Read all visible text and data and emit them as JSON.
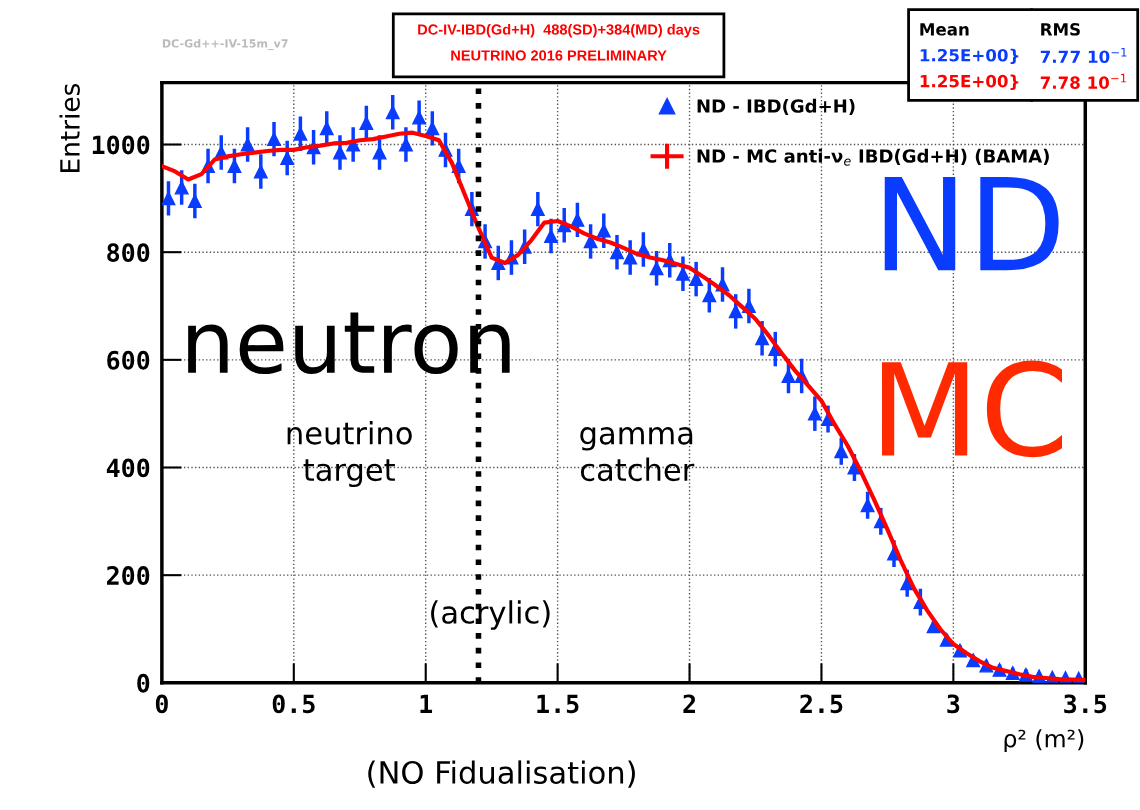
{
  "chart_data": {
    "type": "scatter",
    "title": "DC-IV-IBD(Gd+H)  488(SD)+384(MD) days",
    "subtitle": "NEUTRINO 2016 PRELIMINARY",
    "xlabel": "ρ² (m²)",
    "ylabel": "Entries",
    "xlim": [
      0,
      3.5
    ],
    "ylim": [
      0,
      1115
    ],
    "xticks": [
      0,
      0.5,
      1,
      1.5,
      2,
      2.5,
      3,
      3.5
    ],
    "yticks": [
      0,
      200,
      400,
      600,
      800,
      1000
    ],
    "grid": true,
    "legend": "top right",
    "ref_lines": [
      {
        "axis": "x",
        "value": 1.2,
        "color": "#000000",
        "line_style": "dotted"
      }
    ],
    "annotations": [
      "DC-Gd++-IV-15m_v7",
      "neutron",
      "neutrino\ntarget",
      "gamma\ncatcher",
      "(acrylic)",
      "(NO Fidualisation)",
      "ND",
      "MC",
      "Mean",
      "1.25E+00}",
      "1.25E+00}",
      "RMS",
      "7.77 10$^{−1}$",
      "7.78 10$^{−1}$"
    ],
    "series": [
      {
        "name": "ND - IBD(Gd+H)",
        "color": "#0a3cff",
        "marker": "triangle",
        "x": [
          0.025,
          0.075,
          0.125,
          0.175,
          0.225,
          0.275,
          0.325,
          0.375,
          0.425,
          0.475,
          0.525,
          0.575,
          0.625,
          0.675,
          0.725,
          0.775,
          0.825,
          0.875,
          0.925,
          0.975,
          1.025,
          1.075,
          1.125,
          1.175,
          1.225,
          1.275,
          1.325,
          1.375,
          1.425,
          1.475,
          1.525,
          1.575,
          1.625,
          1.675,
          1.725,
          1.775,
          1.825,
          1.875,
          1.925,
          1.975,
          2.025,
          2.075,
          2.125,
          2.175,
          2.225,
          2.275,
          2.325,
          2.375,
          2.425,
          2.475,
          2.525,
          2.575,
          2.625,
          2.675,
          2.725,
          2.775,
          2.825,
          2.875,
          2.925,
          2.975,
          3.025,
          3.075,
          3.125,
          3.175,
          3.225,
          3.275,
          3.325,
          3.375,
          3.425,
          3.475
        ],
        "values": [
          900,
          920,
          895,
          960,
          985,
          960,
          1000,
          950,
          1010,
          975,
          1020,
          995,
          1030,
          985,
          1000,
          1040,
          985,
          1060,
          1000,
          1050,
          1030,
          990,
          960,
          880,
          820,
          780,
          790,
          810,
          880,
          830,
          850,
          860,
          820,
          840,
          800,
          790,
          805,
          770,
          785,
          760,
          750,
          720,
          740,
          690,
          700,
          640,
          620,
          570,
          570,
          500,
          490,
          430,
          400,
          330,
          300,
          240,
          185,
          150,
          105,
          80,
          60,
          42,
          32,
          24,
          18,
          15,
          12,
          10,
          9,
          8
        ],
        "errors": [
          32,
          32,
          32,
          32,
          32,
          32,
          32,
          32,
          32,
          32,
          32,
          32,
          32,
          32,
          32,
          32,
          32,
          32,
          32,
          32,
          32,
          32,
          32,
          32,
          32,
          32,
          32,
          32,
          32,
          32,
          32,
          32,
          32,
          32,
          32,
          32,
          32,
          32,
          32,
          32,
          32,
          32,
          32,
          32,
          32,
          32,
          32,
          32,
          32,
          32,
          25,
          25,
          25,
          25,
          25,
          25,
          25,
          25,
          10,
          10,
          10,
          10,
          10,
          10,
          10,
          10,
          null,
          null,
          null,
          null
        ]
      },
      {
        "name": "ND - MC anti-ν$_{e}$ IBD(Gd+H) (BAMA)",
        "type": "line",
        "color": "#ff0000",
        "line_style": "solid",
        "x": [
          0,
          0.05,
          0.1,
          0.15,
          0.2,
          0.25,
          0.3,
          0.35,
          0.4,
          0.45,
          0.5,
          0.55,
          0.6,
          0.65,
          0.7,
          0.75,
          0.8,
          0.85,
          0.9,
          0.95,
          1.0,
          1.05,
          1.1,
          1.15,
          1.2,
          1.25,
          1.3,
          1.35,
          1.4,
          1.45,
          1.5,
          1.55,
          1.6,
          1.65,
          1.7,
          1.75,
          1.8,
          1.85,
          1.9,
          1.95,
          2.0,
          2.05,
          2.1,
          2.15,
          2.2,
          2.25,
          2.3,
          2.35,
          2.4,
          2.45,
          2.5,
          2.55,
          2.6,
          2.65,
          2.7,
          2.75,
          2.8,
          2.85,
          2.9,
          2.95,
          3.0,
          3.05,
          3.1,
          3.15,
          3.2,
          3.25,
          3.3,
          3.35,
          3.4,
          3.45,
          3.5
        ],
        "values": [
          960,
          950,
          935,
          945,
          972,
          978,
          982,
          985,
          988,
          990,
          990,
          995,
          998,
          1002,
          1003,
          1008,
          1010,
          1015,
          1020,
          1022,
          1016,
          1008,
          965,
          905,
          845,
          790,
          780,
          795,
          822,
          855,
          858,
          848,
          835,
          825,
          818,
          808,
          797,
          790,
          785,
          778,
          771,
          755,
          738,
          720,
          698,
          676,
          645,
          612,
          580,
          552,
          524,
          480,
          440,
          392,
          340,
          285,
          228,
          176,
          135,
          100,
          72,
          55,
          40,
          28,
          22,
          16,
          11,
          9,
          7,
          6,
          5
        ]
      }
    ]
  }
}
